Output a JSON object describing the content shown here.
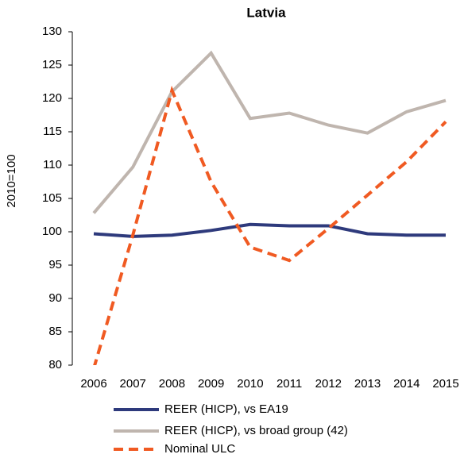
{
  "chart_data": {
    "type": "line",
    "title": "Latvia",
    "y_label": "2010=100",
    "categories": [
      "2006",
      "2007",
      "2008",
      "2009",
      "2010",
      "2011",
      "2012",
      "2013",
      "2014",
      "2015"
    ],
    "series": [
      {
        "name": "REER (HICP), vs EA19",
        "color": "#2e3a7c",
        "dashed": false,
        "values": [
          99.7,
          99.3,
          99.5,
          100.2,
          101.1,
          100.9,
          100.9,
          99.7,
          99.5,
          99.5
        ]
      },
      {
        "name": "REER (HICP), vs broad group (42)",
        "color": "#bfb5ae",
        "dashed": false,
        "values": [
          102.8,
          109.7,
          121,
          126.8,
          117,
          117.8,
          116,
          114.8,
          118,
          119.7
        ]
      },
      {
        "name": "Nominal ULC",
        "color": "#f05a22",
        "dashed": true,
        "values": [
          79.5,
          99.5,
          121.2,
          107.5,
          97.7,
          95.7,
          100.5,
          105.5,
          110.5,
          116.5
        ]
      }
    ],
    "ylim": [
      80,
      130
    ],
    "yticks": [
      80,
      85,
      90,
      95,
      100,
      105,
      110,
      115,
      120,
      125,
      130
    ],
    "grid": false
  }
}
